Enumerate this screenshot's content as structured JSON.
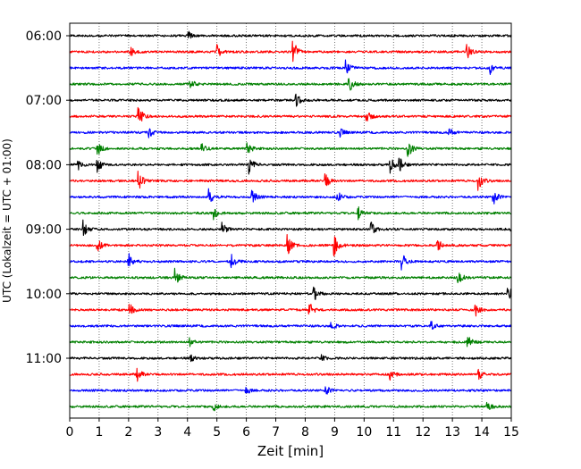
{
  "chart_data": {
    "type": "line",
    "subtype": "helicorder seismogram",
    "xlabel": "Zeit  [min]",
    "ylabel": "UTC (Lokalzeit = UTC + 01:00)",
    "xlim": [
      0,
      15
    ],
    "x_ticks": [
      "0",
      "1",
      "2",
      "3",
      "4",
      "5",
      "6",
      "7",
      "8",
      "9",
      "10",
      "11",
      "12",
      "13",
      "14",
      "15"
    ],
    "y_ticks": [
      "06:00",
      "07:00",
      "08:00",
      "09:00",
      "10:00",
      "11:00"
    ],
    "rows_per_hour": 4,
    "minutes_per_row": 15,
    "start_time": "06:00",
    "trace_colors": [
      "#000000",
      "#ff0000",
      "#0000ff",
      "#008000"
    ],
    "vertical_grid": "dotted, every minute",
    "rows": [
      {
        "time": "06:00",
        "color": "#000000",
        "events": [
          {
            "min": 4.05,
            "amp": 0.3
          }
        ]
      },
      {
        "time": "06:15",
        "color": "#ff0000",
        "events": [
          {
            "min": 2.1,
            "amp": 0.35
          },
          {
            "min": 5.0,
            "amp": 0.6
          },
          {
            "min": 7.6,
            "amp": 0.9
          },
          {
            "min": 13.5,
            "amp": 0.6
          }
        ]
      },
      {
        "time": "06:30",
        "color": "#0000ff",
        "events": [
          {
            "min": 9.4,
            "amp": 0.7
          },
          {
            "min": 14.3,
            "amp": 0.5
          }
        ]
      },
      {
        "time": "06:45",
        "color": "#008000",
        "events": [
          {
            "min": 4.1,
            "amp": 0.4
          },
          {
            "min": 9.5,
            "amp": 0.7
          }
        ]
      },
      {
        "time": "07:00",
        "color": "#000000",
        "events": [
          {
            "min": 7.7,
            "amp": 0.5
          }
        ]
      },
      {
        "time": "07:15",
        "color": "#ff0000",
        "events": [
          {
            "min": 2.35,
            "amp": 0.75
          },
          {
            "min": 10.1,
            "amp": 0.5
          }
        ]
      },
      {
        "time": "07:30",
        "color": "#0000ff",
        "events": [
          {
            "min": 2.7,
            "amp": 0.4
          },
          {
            "min": 9.2,
            "amp": 0.3
          },
          {
            "min": 12.9,
            "amp": 0.3
          }
        ]
      },
      {
        "time": "07:45",
        "color": "#008000",
        "events": [
          {
            "min": 0.95,
            "amp": 0.6
          },
          {
            "min": 4.5,
            "amp": 0.4
          },
          {
            "min": 6.05,
            "amp": 0.5
          },
          {
            "min": 11.5,
            "amp": 0.7
          }
        ]
      },
      {
        "time": "08:00",
        "color": "#000000",
        "events": [
          {
            "min": 0.3,
            "amp": 0.4
          },
          {
            "min": 0.95,
            "amp": 0.6
          },
          {
            "min": 6.1,
            "amp": 0.7
          },
          {
            "min": 10.9,
            "amp": 0.6
          },
          {
            "min": 11.2,
            "amp": 0.6
          }
        ]
      },
      {
        "time": "08:15",
        "color": "#ff0000",
        "events": [
          {
            "min": 2.35,
            "amp": 0.7
          },
          {
            "min": 8.7,
            "amp": 0.6
          },
          {
            "min": 13.9,
            "amp": 0.7
          }
        ]
      },
      {
        "time": "08:30",
        "color": "#0000ff",
        "events": [
          {
            "min": 4.75,
            "amp": 0.6
          },
          {
            "min": 6.2,
            "amp": 0.6
          },
          {
            "min": 9.1,
            "amp": 0.5
          },
          {
            "min": 14.4,
            "amp": 0.6
          }
        ]
      },
      {
        "time": "08:45",
        "color": "#008000",
        "events": [
          {
            "min": 4.9,
            "amp": 0.5
          },
          {
            "min": 9.8,
            "amp": 0.6
          }
        ]
      },
      {
        "time": "09:00",
        "color": "#000000",
        "events": [
          {
            "min": 0.45,
            "amp": 0.7
          },
          {
            "min": 5.2,
            "amp": 0.5
          },
          {
            "min": 10.25,
            "amp": 0.75
          },
          {
            "min": 15.0,
            "amp": 0.5
          }
        ]
      },
      {
        "time": "09:15",
        "color": "#ff0000",
        "events": [
          {
            "min": 0.95,
            "amp": 0.5
          },
          {
            "min": 7.4,
            "amp": 0.8
          },
          {
            "min": 9.0,
            "amp": 0.8
          },
          {
            "min": 12.5,
            "amp": 0.6
          }
        ]
      },
      {
        "time": "09:30",
        "color": "#0000ff",
        "events": [
          {
            "min": 2.0,
            "amp": 0.7
          },
          {
            "min": 5.5,
            "amp": 0.5
          },
          {
            "min": 11.3,
            "amp": 0.6
          }
        ]
      },
      {
        "time": "09:45",
        "color": "#008000",
        "events": [
          {
            "min": 3.6,
            "amp": 0.7
          },
          {
            "min": 13.2,
            "amp": 0.6
          }
        ]
      },
      {
        "time": "10:00",
        "color": "#000000",
        "events": [
          {
            "min": 8.3,
            "amp": 0.7
          },
          {
            "min": 14.9,
            "amp": 0.6
          }
        ]
      },
      {
        "time": "10:15",
        "color": "#ff0000",
        "events": [
          {
            "min": 2.05,
            "amp": 0.5
          },
          {
            "min": 8.15,
            "amp": 0.6
          },
          {
            "min": 13.8,
            "amp": 0.5
          }
        ]
      },
      {
        "time": "10:30",
        "color": "#0000ff",
        "events": [
          {
            "min": 8.9,
            "amp": 0.3
          },
          {
            "min": 12.3,
            "amp": 0.3
          }
        ]
      },
      {
        "time": "10:45",
        "color": "#008000",
        "events": [
          {
            "min": 4.1,
            "amp": 0.3
          },
          {
            "min": 13.5,
            "amp": 0.6
          }
        ]
      },
      {
        "time": "11:00",
        "color": "#000000",
        "events": [
          {
            "min": 4.1,
            "amp": 0.3
          },
          {
            "min": 8.5,
            "amp": 0.4
          }
        ]
      },
      {
        "time": "11:15",
        "color": "#ff0000",
        "events": [
          {
            "min": 2.3,
            "amp": 0.5
          },
          {
            "min": 10.9,
            "amp": 0.4
          },
          {
            "min": 13.9,
            "amp": 0.4
          }
        ]
      },
      {
        "time": "11:30",
        "color": "#0000ff",
        "events": [
          {
            "min": 6.0,
            "amp": 0.3
          },
          {
            "min": 8.7,
            "amp": 0.4
          }
        ]
      },
      {
        "time": "11:45",
        "color": "#008000",
        "events": [
          {
            "min": 4.9,
            "amp": 0.3
          },
          {
            "min": 14.2,
            "amp": 0.5
          }
        ]
      }
    ]
  }
}
